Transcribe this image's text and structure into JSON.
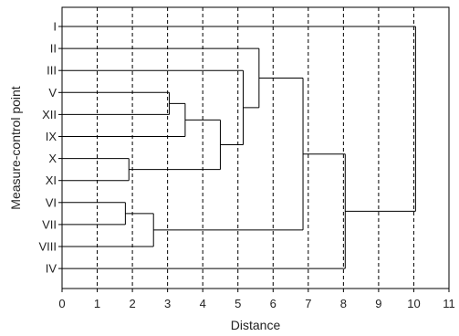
{
  "chart_data": {
    "type": "dendrogram",
    "xlabel": "Distance",
    "ylabel": "Measure-control point",
    "xlim": [
      0,
      11
    ],
    "x_ticks": [
      0,
      1,
      2,
      3,
      4,
      5,
      6,
      7,
      8,
      9,
      10,
      11
    ],
    "grid": "vertical dashed at each x tick",
    "leaves": [
      "I",
      "II",
      "III",
      "V",
      "XII",
      "IX",
      "X",
      "XI",
      "VI",
      "VII",
      "VIII",
      "IV"
    ],
    "merges": [
      {
        "id": "m1",
        "children": [
          "X",
          "XI"
        ],
        "distance": 1.9
      },
      {
        "id": "m2",
        "children": [
          "VI",
          "VII"
        ],
        "distance": 1.8
      },
      {
        "id": "m3",
        "children": [
          "V",
          "XII"
        ],
        "distance": 3.05
      },
      {
        "id": "m4",
        "children": [
          "m3",
          "IX"
        ],
        "distance": 3.5
      },
      {
        "id": "m5",
        "children": [
          "m2",
          "VIII"
        ],
        "distance": 2.6
      },
      {
        "id": "m6",
        "children": [
          "m4",
          "m1"
        ],
        "distance": 4.5
      },
      {
        "id": "m7",
        "children": [
          "III",
          "m6"
        ],
        "distance": 5.15
      },
      {
        "id": "m8",
        "children": [
          "II",
          "m7"
        ],
        "distance": 5.6
      },
      {
        "id": "m9",
        "children": [
          "m8",
          "m5"
        ],
        "distance": 6.85
      },
      {
        "id": "m10",
        "children": [
          "m9",
          "IV"
        ],
        "distance": 8.05
      },
      {
        "id": "m11",
        "children": [
          "I",
          "m10"
        ],
        "distance": 10.05
      }
    ],
    "colors": {
      "line": "#000000",
      "grid": "#000000",
      "background": "#ffffff"
    }
  }
}
